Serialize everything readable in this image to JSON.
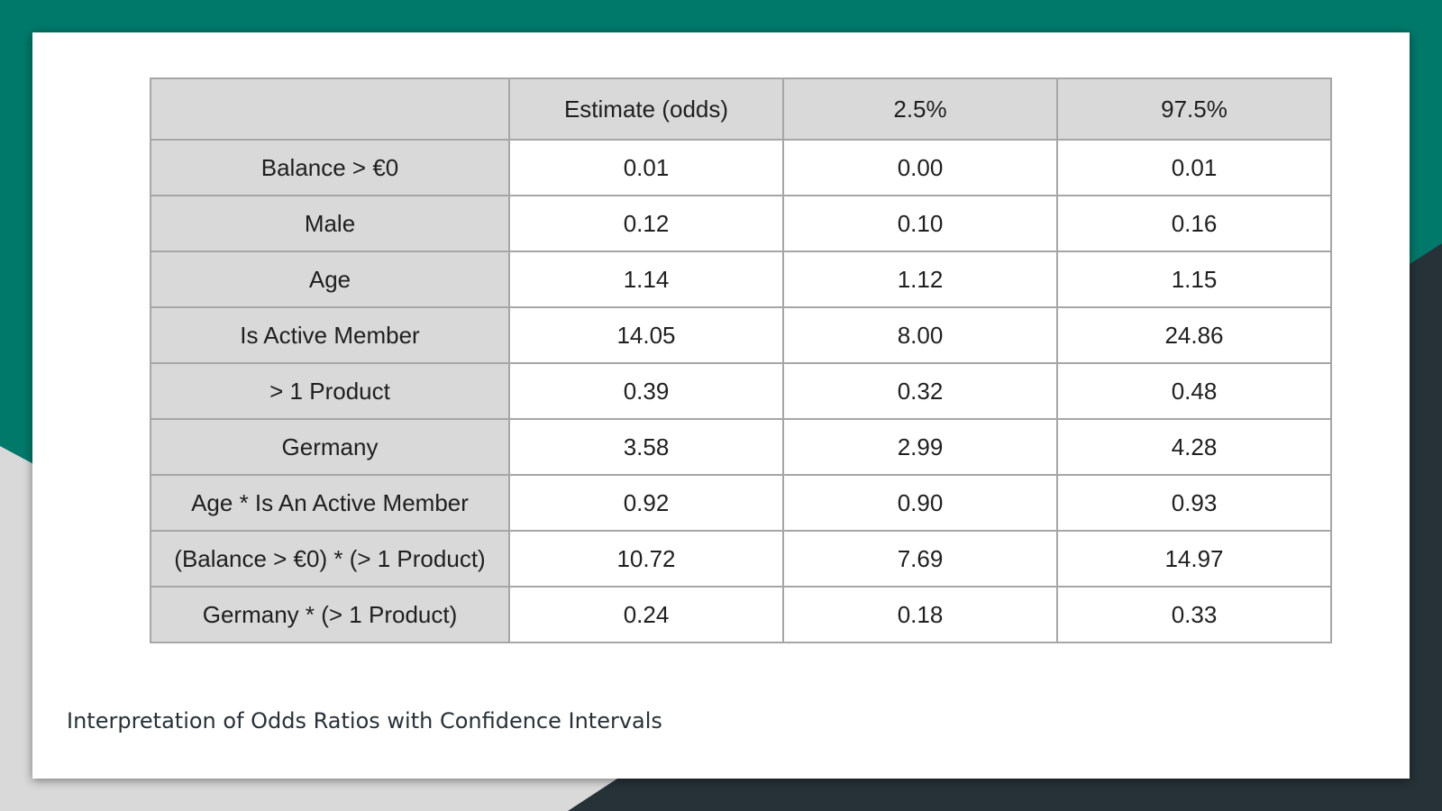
{
  "colors": {
    "teal": "#00796b",
    "dark_navy": "#263238",
    "light_gray": "#d9d9d9",
    "slide_bg": "#ffffff",
    "table_header_bg": "#d9d9d9",
    "table_border": "#a6a6a6"
  },
  "table": {
    "headers": [
      "",
      "Estimate (odds)",
      "2.5%",
      "97.5%"
    ],
    "rows": [
      {
        "label": "Balance > €0",
        "estimate": "0.01",
        "lower": "0.00",
        "upper": "0.01"
      },
      {
        "label": "Male",
        "estimate": "0.12",
        "lower": "0.10",
        "upper": "0.16"
      },
      {
        "label": "Age",
        "estimate": "1.14",
        "lower": "1.12",
        "upper": "1.15"
      },
      {
        "label": "Is Active Member",
        "estimate": "14.05",
        "lower": "8.00",
        "upper": "24.86"
      },
      {
        "label": "> 1 Product",
        "estimate": "0.39",
        "lower": "0.32",
        "upper": "0.48"
      },
      {
        "label": "Germany",
        "estimate": "3.58",
        "lower": "2.99",
        "upper": "4.28"
      },
      {
        "label": "Age * Is An Active Member",
        "estimate": "0.92",
        "lower": "0.90",
        "upper": "0.93"
      },
      {
        "label": "(Balance > €0) * (> 1 Product)",
        "estimate": "10.72",
        "lower": "7.69",
        "upper": "14.97"
      },
      {
        "label": "Germany * (> 1 Product)",
        "estimate": "0.24",
        "lower": "0.18",
        "upper": "0.33"
      }
    ]
  },
  "caption": "Interpretation of Odds Ratios with Confidence Intervals"
}
